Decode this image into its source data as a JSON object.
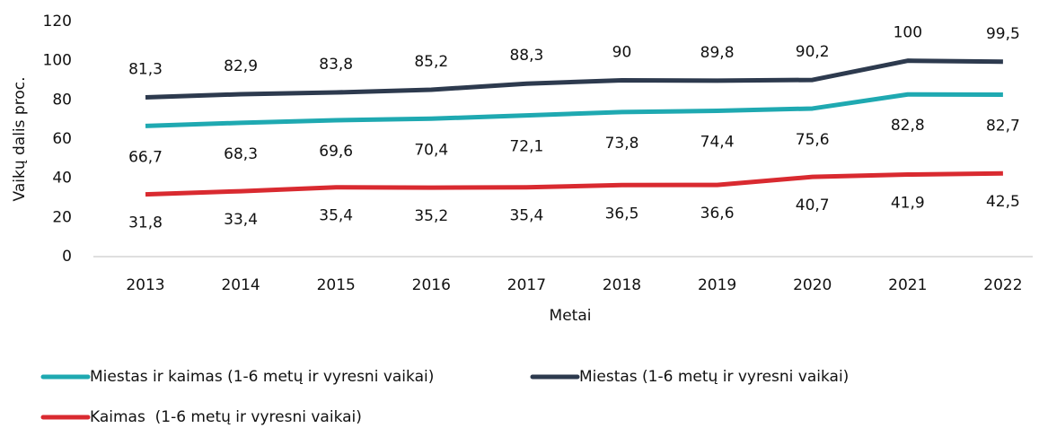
{
  "chart_data": {
    "type": "line",
    "y_label": "Vaikų dalis proc.",
    "x_label": "Metai",
    "categories": [
      "2013",
      "2014",
      "2015",
      "2016",
      "2017",
      "2018",
      "2019",
      "2020",
      "2021",
      "2022"
    ],
    "series": [
      {
        "name": "Miestas ir kaimas (1-6 metų ir vyresni vaikai)",
        "color": "#1fa9b1",
        "values": [
          66.7,
          68.3,
          69.6,
          70.4,
          72.1,
          73.8,
          74.4,
          75.6,
          82.8,
          82.7
        ],
        "value_labels": [
          "66,7",
          "68,3",
          "69,6",
          "70,4",
          "72,1",
          "73,8",
          "74,4",
          "75,6",
          "82,8",
          "82,7"
        ]
      },
      {
        "name": "Miestas (1-6 metų ir vyresni vaikai)",
        "color": "#2d3a4e",
        "values": [
          81.3,
          82.9,
          83.8,
          85.2,
          88.3,
          90,
          89.8,
          90.2,
          100,
          99.5
        ],
        "value_labels": [
          "81,3",
          "82,9",
          "83,8",
          "85,2",
          "88,3",
          "90",
          "89,8",
          "90,2",
          "100",
          "99,5"
        ]
      },
      {
        "name": "Kaimas  (1-6 metų ir vyresni vaikai)",
        "color": "#d92a30",
        "values": [
          31.8,
          33.4,
          35.4,
          35.2,
          35.4,
          36.5,
          36.6,
          40.7,
          41.9,
          42.5
        ],
        "value_labels": [
          "31,8",
          "33,4",
          "35,4",
          "35,2",
          "35,4",
          "36,5",
          "36,6",
          "40,7",
          "41,9",
          "42,5"
        ]
      }
    ],
    "ylim": [
      0,
      120
    ],
    "yticks": [
      0,
      20,
      40,
      60,
      80,
      100,
      120
    ],
    "grid": false
  }
}
